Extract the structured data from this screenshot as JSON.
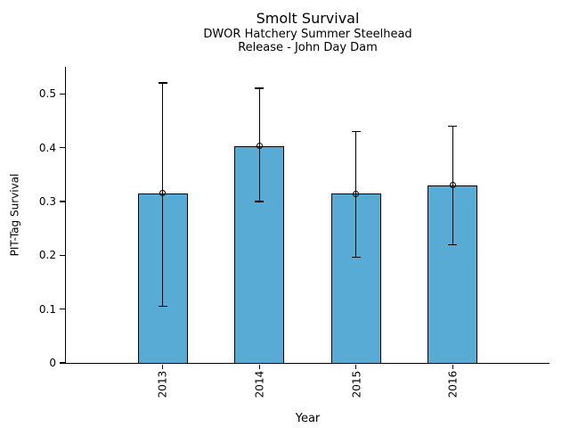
{
  "chart_data": {
    "type": "bar",
    "title": "Smolt Survival",
    "subtitle_line1": "DWOR Hatchery Summer Steelhead",
    "subtitle_line2": "Release - John Day Dam",
    "xlabel": "Year",
    "ylabel": "PIT-Tag Survival",
    "categories": [
      "2013",
      "2014",
      "2015",
      "2016"
    ],
    "values": [
      0.315,
      0.403,
      0.314,
      0.33
    ],
    "error_low": [
      0.105,
      0.3,
      0.196,
      0.22
    ],
    "error_high": [
      0.52,
      0.51,
      0.43,
      0.44
    ],
    "yticks": [
      0,
      0.1,
      0.2,
      0.3,
      0.4,
      0.5
    ],
    "ytick_labels": [
      "0",
      "0.1",
      "0.2",
      "0.3",
      "0.4",
      "0.5"
    ],
    "ylim": [
      0,
      0.55
    ],
    "grid": false,
    "legend": false,
    "bar_color": "#58ABD4",
    "bar_edge_color": "#000000",
    "error_color": "#000000",
    "marker_style": "open-circle",
    "background_color": "#ffffff"
  }
}
